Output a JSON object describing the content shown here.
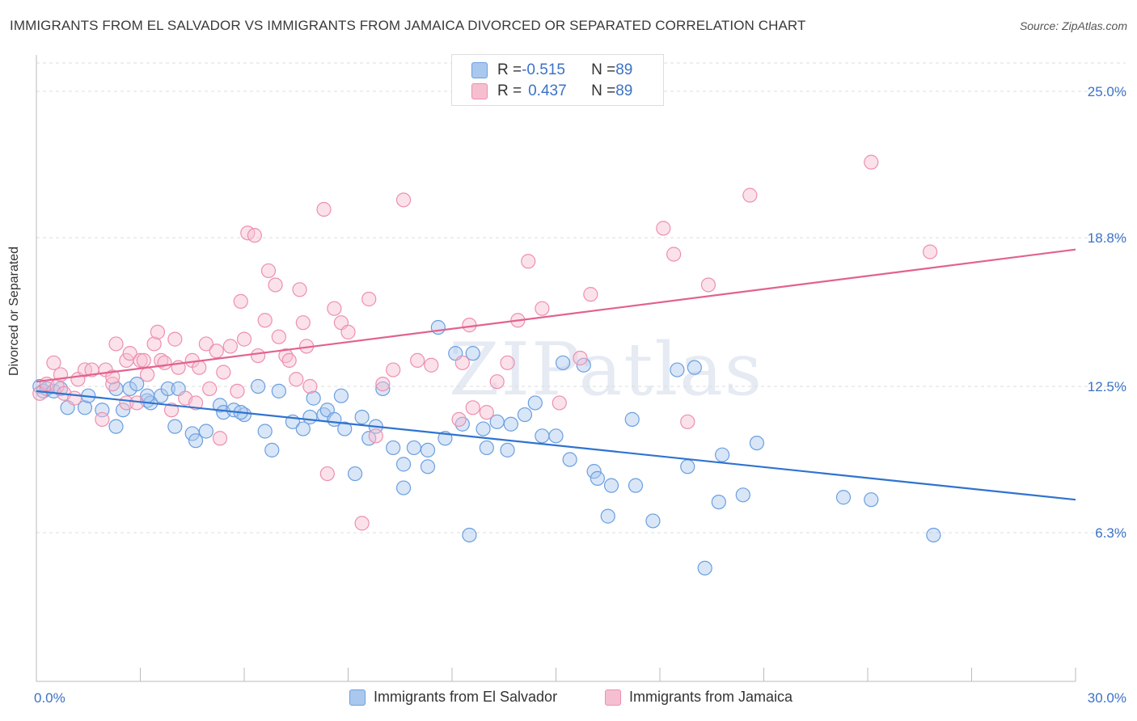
{
  "header": {
    "title": "IMMIGRANTS FROM EL SALVADOR VS IMMIGRANTS FROM JAMAICA DIVORCED OR SEPARATED CORRELATION CHART",
    "source": "Source: ZipAtlas.com"
  },
  "watermark": "ZIPatlas",
  "legend": {
    "row1": {
      "r_label": "R = ",
      "r_value": "-0.515",
      "n_label": "N = ",
      "n_value": "89"
    },
    "row2": {
      "r_label": "R = ",
      "r_value": "0.437",
      "n_label": "N = ",
      "n_value": "89"
    }
  },
  "colors": {
    "blue_fill": "#aac8ee",
    "blue_stroke": "#6a9fe0",
    "blue_line": "#2f73d0",
    "pink_fill": "#f6bfd0",
    "pink_stroke": "#ee8fae",
    "pink_line": "#e2628f",
    "axis_label": "#3b72c6",
    "grid": "#dddddd"
  },
  "chart_data": {
    "type": "scatter",
    "title": "IMMIGRANTS FROM EL SALVADOR VS IMMIGRANTS FROM JAMAICA DIVORCED OR SEPARATED CORRELATION CHART",
    "xlabel": "",
    "ylabel": "Divorced or Separated",
    "x_tick_labels": [
      "0.0%",
      "30.0%"
    ],
    "y_tick_labels": [
      "25.0%",
      "18.8%",
      "12.5%",
      "6.3%"
    ],
    "y_ticks": [
      25.0,
      18.8,
      12.5,
      6.3
    ],
    "xlim": [
      0,
      30
    ],
    "ylim": [
      0,
      26.2
    ],
    "grid": "horizontal dashed",
    "legend_position": "top-center",
    "series": [
      {
        "name": "Immigrants from El Salvador",
        "color": "blue",
        "r": -0.515,
        "n": 89,
        "trend": [
          [
            0,
            12.3
          ],
          [
            30,
            7.7
          ]
        ],
        "points": [
          [
            0.1,
            12.5
          ],
          [
            0.2,
            12.3
          ],
          [
            0.3,
            12.4
          ],
          [
            0.5,
            12.3
          ],
          [
            0.7,
            12.4
          ],
          [
            0.9,
            11.6
          ],
          [
            1.4,
            11.6
          ],
          [
            1.5,
            12.1
          ],
          [
            1.9,
            11.5
          ],
          [
            2.3,
            12.4
          ],
          [
            2.3,
            10.8
          ],
          [
            2.5,
            11.5
          ],
          [
            2.7,
            12.4
          ],
          [
            2.9,
            12.6
          ],
          [
            3.2,
            11.9
          ],
          [
            3.3,
            11.8
          ],
          [
            3.6,
            12.1
          ],
          [
            3.8,
            12.4
          ],
          [
            4.0,
            10.8
          ],
          [
            4.1,
            12.4
          ],
          [
            4.5,
            10.5
          ],
          [
            4.6,
            10.2
          ],
          [
            4.9,
            10.6
          ],
          [
            5.3,
            11.7
          ],
          [
            5.4,
            11.4
          ],
          [
            5.7,
            11.5
          ],
          [
            6.0,
            11.3
          ],
          [
            6.4,
            12.5
          ],
          [
            6.6,
            10.6
          ],
          [
            6.8,
            9.8
          ],
          [
            7.0,
            12.3
          ],
          [
            7.4,
            11.0
          ],
          [
            7.7,
            10.7
          ],
          [
            7.9,
            11.2
          ],
          [
            8.3,
            11.3
          ],
          [
            8.4,
            11.5
          ],
          [
            8.6,
            11.1
          ],
          [
            8.8,
            12.1
          ],
          [
            8.9,
            10.7
          ],
          [
            9.2,
            8.8
          ],
          [
            9.4,
            11.2
          ],
          [
            9.6,
            10.3
          ],
          [
            9.8,
            10.8
          ],
          [
            10.0,
            12.4
          ],
          [
            10.3,
            9.9
          ],
          [
            10.6,
            9.2
          ],
          [
            10.6,
            8.2
          ],
          [
            10.9,
            9.9
          ],
          [
            11.3,
            9.1
          ],
          [
            11.3,
            9.8
          ],
          [
            11.6,
            15.0
          ],
          [
            11.8,
            10.3
          ],
          [
            12.1,
            13.9
          ],
          [
            12.3,
            10.9
          ],
          [
            12.5,
            6.2
          ],
          [
            12.6,
            13.9
          ],
          [
            12.9,
            10.7
          ],
          [
            13.0,
            9.9
          ],
          [
            13.3,
            11.0
          ],
          [
            13.6,
            9.8
          ],
          [
            13.7,
            10.9
          ],
          [
            14.1,
            11.3
          ],
          [
            14.4,
            11.8
          ],
          [
            14.6,
            10.4
          ],
          [
            15.0,
            10.4
          ],
          [
            15.2,
            13.5
          ],
          [
            15.4,
            9.4
          ],
          [
            15.8,
            13.4
          ],
          [
            16.1,
            8.9
          ],
          [
            16.2,
            8.6
          ],
          [
            16.5,
            7.0
          ],
          [
            16.6,
            8.3
          ],
          [
            17.2,
            11.1
          ],
          [
            17.3,
            8.3
          ],
          [
            17.8,
            6.8
          ],
          [
            18.5,
            13.2
          ],
          [
            18.8,
            9.1
          ],
          [
            19.0,
            13.3
          ],
          [
            19.3,
            4.8
          ],
          [
            19.7,
            7.6
          ],
          [
            19.8,
            9.6
          ],
          [
            20.4,
            7.9
          ],
          [
            20.8,
            10.1
          ],
          [
            23.3,
            7.8
          ],
          [
            24.1,
            7.7
          ],
          [
            25.9,
            6.2
          ],
          [
            3.2,
            12.1
          ],
          [
            5.9,
            11.4
          ],
          [
            8.0,
            12.0
          ]
        ]
      },
      {
        "name": "Immigrants from Jamaica",
        "color": "pink",
        "r": 0.437,
        "n": 89,
        "trend": [
          [
            0,
            12.7
          ],
          [
            30,
            18.3
          ]
        ],
        "points": [
          [
            0.1,
            12.2
          ],
          [
            0.3,
            12.6
          ],
          [
            0.5,
            13.5
          ],
          [
            0.6,
            12.5
          ],
          [
            0.7,
            13.0
          ],
          [
            0.8,
            12.2
          ],
          [
            1.1,
            12.0
          ],
          [
            1.2,
            12.8
          ],
          [
            1.4,
            13.2
          ],
          [
            1.6,
            13.2
          ],
          [
            1.9,
            11.1
          ],
          [
            2.0,
            13.2
          ],
          [
            2.2,
            12.6
          ],
          [
            2.3,
            14.3
          ],
          [
            2.6,
            11.8
          ],
          [
            2.6,
            13.6
          ],
          [
            2.7,
            13.9
          ],
          [
            2.9,
            11.8
          ],
          [
            3.0,
            13.6
          ],
          [
            3.1,
            13.6
          ],
          [
            3.2,
            13.0
          ],
          [
            3.4,
            14.3
          ],
          [
            3.5,
            14.8
          ],
          [
            3.6,
            13.6
          ],
          [
            3.7,
            13.5
          ],
          [
            3.9,
            11.5
          ],
          [
            4.1,
            13.3
          ],
          [
            4.3,
            12.0
          ],
          [
            4.5,
            13.6
          ],
          [
            4.6,
            11.8
          ],
          [
            4.7,
            13.3
          ],
          [
            4.9,
            14.3
          ],
          [
            5.0,
            12.4
          ],
          [
            5.2,
            14.0
          ],
          [
            5.3,
            10.3
          ],
          [
            5.4,
            13.1
          ],
          [
            5.6,
            14.2
          ],
          [
            5.8,
            12.3
          ],
          [
            5.9,
            16.1
          ],
          [
            6.0,
            14.5
          ],
          [
            6.1,
            19.0
          ],
          [
            6.3,
            18.9
          ],
          [
            6.4,
            13.8
          ],
          [
            6.6,
            15.3
          ],
          [
            6.7,
            17.4
          ],
          [
            6.9,
            16.8
          ],
          [
            7.0,
            14.6
          ],
          [
            7.2,
            13.8
          ],
          [
            7.3,
            13.6
          ],
          [
            7.5,
            12.8
          ],
          [
            7.6,
            16.6
          ],
          [
            7.7,
            15.2
          ],
          [
            7.8,
            14.2
          ],
          [
            7.9,
            12.5
          ],
          [
            8.3,
            20.0
          ],
          [
            8.4,
            8.8
          ],
          [
            8.6,
            15.8
          ],
          [
            8.8,
            15.2
          ],
          [
            9.0,
            14.8
          ],
          [
            9.4,
            6.7
          ],
          [
            9.6,
            16.2
          ],
          [
            9.8,
            10.4
          ],
          [
            10.0,
            12.6
          ],
          [
            10.3,
            13.2
          ],
          [
            10.6,
            20.4
          ],
          [
            11.0,
            13.6
          ],
          [
            11.4,
            13.4
          ],
          [
            12.2,
            11.1
          ],
          [
            12.3,
            13.5
          ],
          [
            12.5,
            15.1
          ],
          [
            12.6,
            11.6
          ],
          [
            13.0,
            11.4
          ],
          [
            13.3,
            12.7
          ],
          [
            13.6,
            13.5
          ],
          [
            13.9,
            15.3
          ],
          [
            14.2,
            17.8
          ],
          [
            14.6,
            15.8
          ],
          [
            15.1,
            11.8
          ],
          [
            15.7,
            13.7
          ],
          [
            16.0,
            16.4
          ],
          [
            18.1,
            19.2
          ],
          [
            18.4,
            18.1
          ],
          [
            18.8,
            11.0
          ],
          [
            19.4,
            16.8
          ],
          [
            20.6,
            20.6
          ],
          [
            24.1,
            22.0
          ],
          [
            25.8,
            18.2
          ],
          [
            2.2,
            12.9
          ],
          [
            4.0,
            14.5
          ]
        ]
      }
    ]
  },
  "bottom_legend": {
    "item1": "Immigrants from El Salvador",
    "item2": "Immigrants from Jamaica"
  }
}
